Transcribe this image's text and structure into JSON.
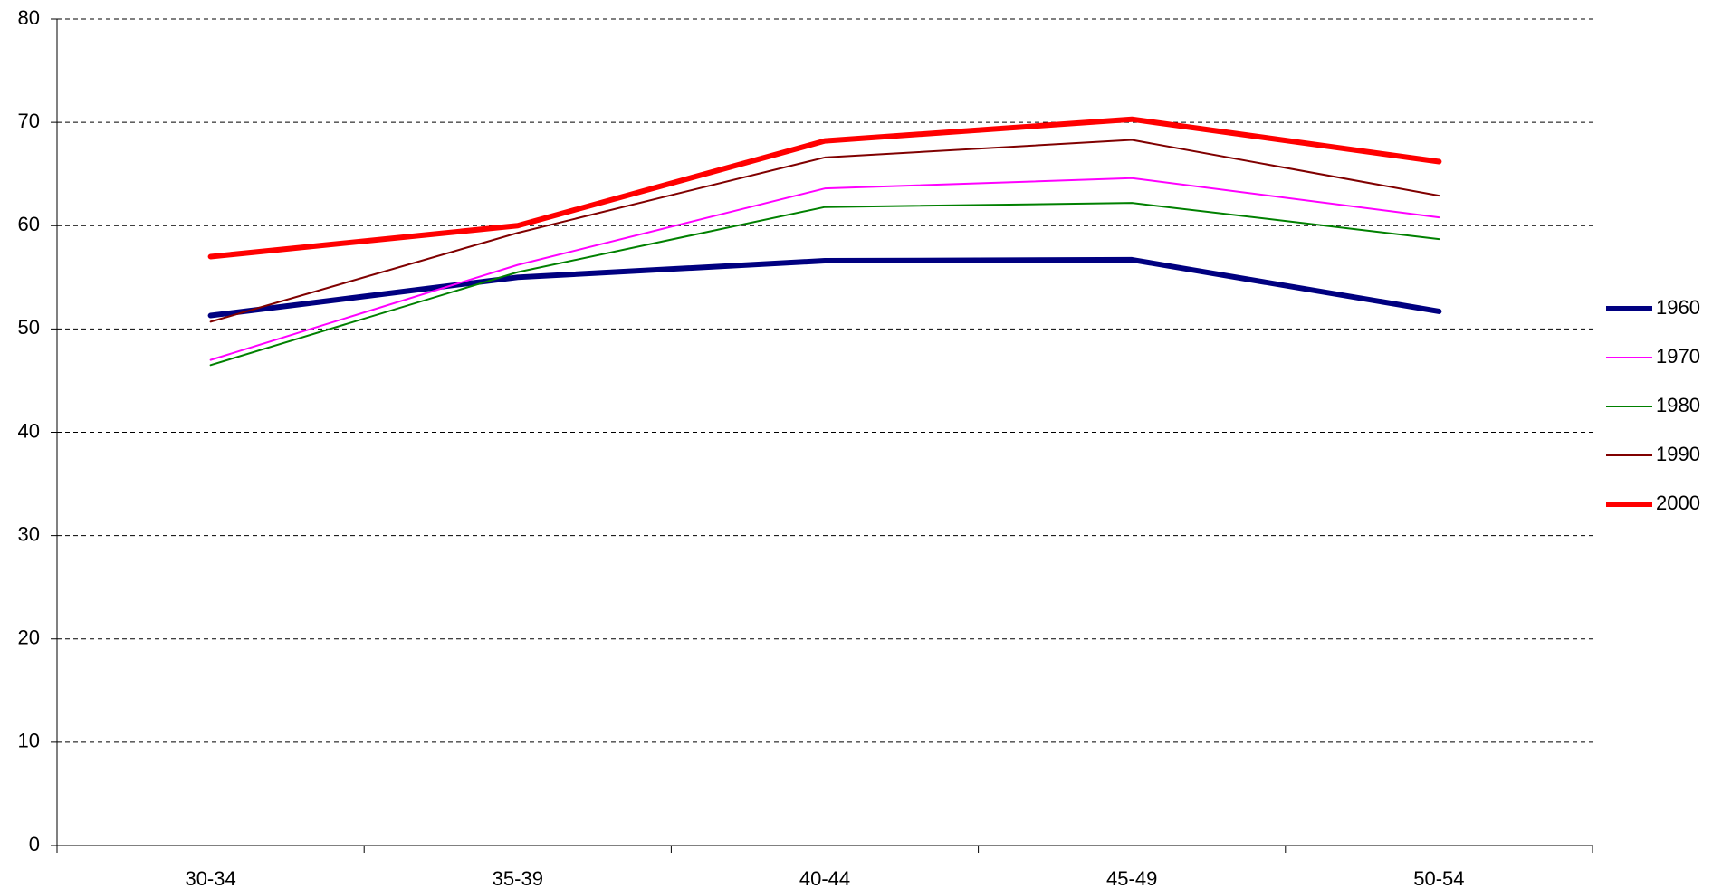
{
  "chart_data": {
    "type": "line",
    "categories": [
      "30-34",
      "35-39",
      "40-44",
      "45-49",
      "50-54"
    ],
    "series": [
      {
        "name": "1960",
        "color": "#000080",
        "values": [
          51.3,
          55.0,
          56.6,
          56.7,
          51.7
        ]
      },
      {
        "name": "1970",
        "color": "#ff00ff",
        "values": [
          47.0,
          56.2,
          63.6,
          64.6,
          60.8
        ]
      },
      {
        "name": "1980",
        "color": "#008000",
        "values": [
          46.5,
          55.5,
          61.8,
          62.2,
          58.7
        ]
      },
      {
        "name": "1990",
        "color": "#800000",
        "values": [
          50.7,
          59.3,
          66.6,
          68.3,
          62.9
        ]
      },
      {
        "name": "2000",
        "color": "#ff0000",
        "values": [
          57.0,
          60.0,
          68.2,
          70.3,
          66.2
        ]
      }
    ],
    "ylim": [
      0,
      80
    ],
    "yticks": [
      0,
      10,
      20,
      30,
      40,
      50,
      60,
      70,
      80
    ],
    "grid": true,
    "legend": "right"
  }
}
